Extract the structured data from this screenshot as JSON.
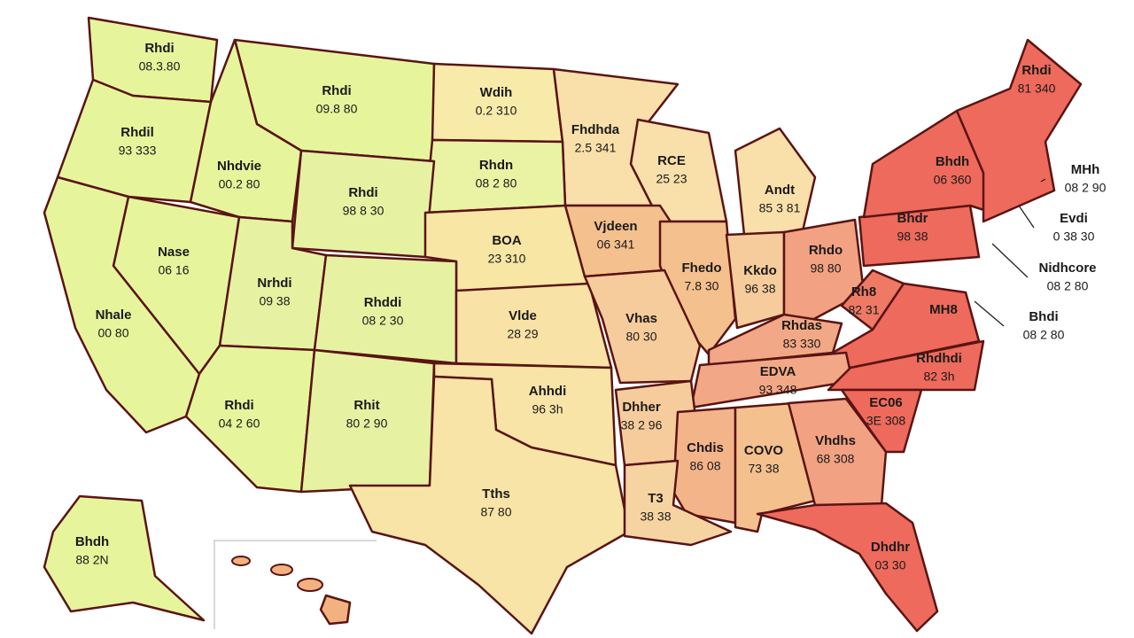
{
  "map": {
    "regions": [
      {
        "label": "Rhdi",
        "value": "08.3.80",
        "color": "#e6f59c"
      },
      {
        "label": "Rhdil",
        "value": "93 333",
        "color": "#e6f59c"
      },
      {
        "label": "Rhdi",
        "value": "09.8 80",
        "color": "#e6f59c"
      },
      {
        "label": "Nhdvie",
        "value": "00.2 80",
        "color": "#e6f59c"
      },
      {
        "label": "Wdih",
        "value": "0.2 310",
        "color": "#f8ebaa"
      },
      {
        "label": "Fhdhda",
        "value": "2.5 341",
        "color": "#f9dfaa"
      },
      {
        "label": "Rhdn",
        "value": "08 2 80",
        "color": "#eaf2a4"
      },
      {
        "label": "Rhdi",
        "value": "98 8 30",
        "color": "#e6f2a2"
      },
      {
        "label": "RCE",
        "value": "25 23",
        "color": "#f9dfaa"
      },
      {
        "label": "Andt",
        "value": "85 3 81",
        "color": "#f9dfaa"
      },
      {
        "label": "Nase",
        "value": "06 16",
        "color": "#e6f59c"
      },
      {
        "label": "Nrhdi",
        "value": "09 38",
        "color": "#e6f2a2"
      },
      {
        "label": "BOA",
        "value": "23 310",
        "color": "#f8e6a4"
      },
      {
        "label": "Vjdeen",
        "value": "06 341",
        "color": "#f4c08e"
      },
      {
        "label": "Fhedo",
        "value": "7.8 30",
        "color": "#f4c08e"
      },
      {
        "label": "Kkdo",
        "value": "96 38",
        "color": "#f6cc9c"
      },
      {
        "label": "Rhdo",
        "value": "98 80",
        "color": "#f2a282"
      },
      {
        "label": "Rhddi",
        "value": "08 2 30",
        "color": "#e6f2a2"
      },
      {
        "label": "Vlde",
        "value": "28 29",
        "color": "#f8e2a6"
      },
      {
        "label": "Vhas",
        "value": "80 30",
        "color": "#f6cc9c"
      },
      {
        "label": "Rhdas",
        "value": "83 330",
        "color": "#f2a886"
      },
      {
        "label": "Nhale",
        "value": "00 80",
        "color": "#e6f59c"
      },
      {
        "label": "Rh8",
        "value": "82 31",
        "color": "#ee7a66"
      },
      {
        "label": "MH8",
        "value": "",
        "color": "#ee6a5c"
      },
      {
        "label": "Bhdr",
        "value": "98 38",
        "color": "#ee6a5c"
      },
      {
        "label": "Bhdh",
        "value": "06 360",
        "color": "#ee6a5c"
      },
      {
        "label": "Rhdi",
        "value": "81 340",
        "color": "#ee6a5c"
      },
      {
        "label": "EDVA",
        "value": "93 348",
        "color": "#f2a886"
      },
      {
        "label": "Rhdhdi",
        "value": "82 3h",
        "color": "#ee6a5c"
      },
      {
        "label": "Rhdi",
        "value": "04 2 60",
        "color": "#e6f59c"
      },
      {
        "label": "Rhit",
        "value": "80 2 90",
        "color": "#e6f2a2"
      },
      {
        "label": "Ahhdi",
        "value": "96 3h",
        "color": "#f8e4a6"
      },
      {
        "label": "Dhher",
        "value": "38 2 96",
        "color": "#f6cc9c"
      },
      {
        "label": "EC06",
        "value": "3E 308",
        "color": "#ee6a5c"
      },
      {
        "label": "Chdis",
        "value": "86 08",
        "color": "#f4b48a"
      },
      {
        "label": "COVO",
        "value": "73 38",
        "color": "#f4c08e"
      },
      {
        "label": "Vhdhs",
        "value": "68 308",
        "color": "#f2a282"
      },
      {
        "label": "Tths",
        "value": "87 80",
        "color": "#f8e4a6"
      },
      {
        "label": "T3",
        "value": "38 38",
        "color": "#f6d4a2"
      },
      {
        "label": "Dhdhr",
        "value": "03 30",
        "color": "#ee6a5c"
      },
      {
        "label": "Bhdh",
        "value": "88 2N",
        "color": "#e6f59c"
      }
    ],
    "callouts": [
      {
        "label": "MHh",
        "value": "08 2 90"
      },
      {
        "label": "Evdi",
        "value": "0 38 30"
      },
      {
        "label": "Nidhcore",
        "value": "08 2 80"
      },
      {
        "label": "Bhdi",
        "value": "08 2 80"
      }
    ]
  }
}
